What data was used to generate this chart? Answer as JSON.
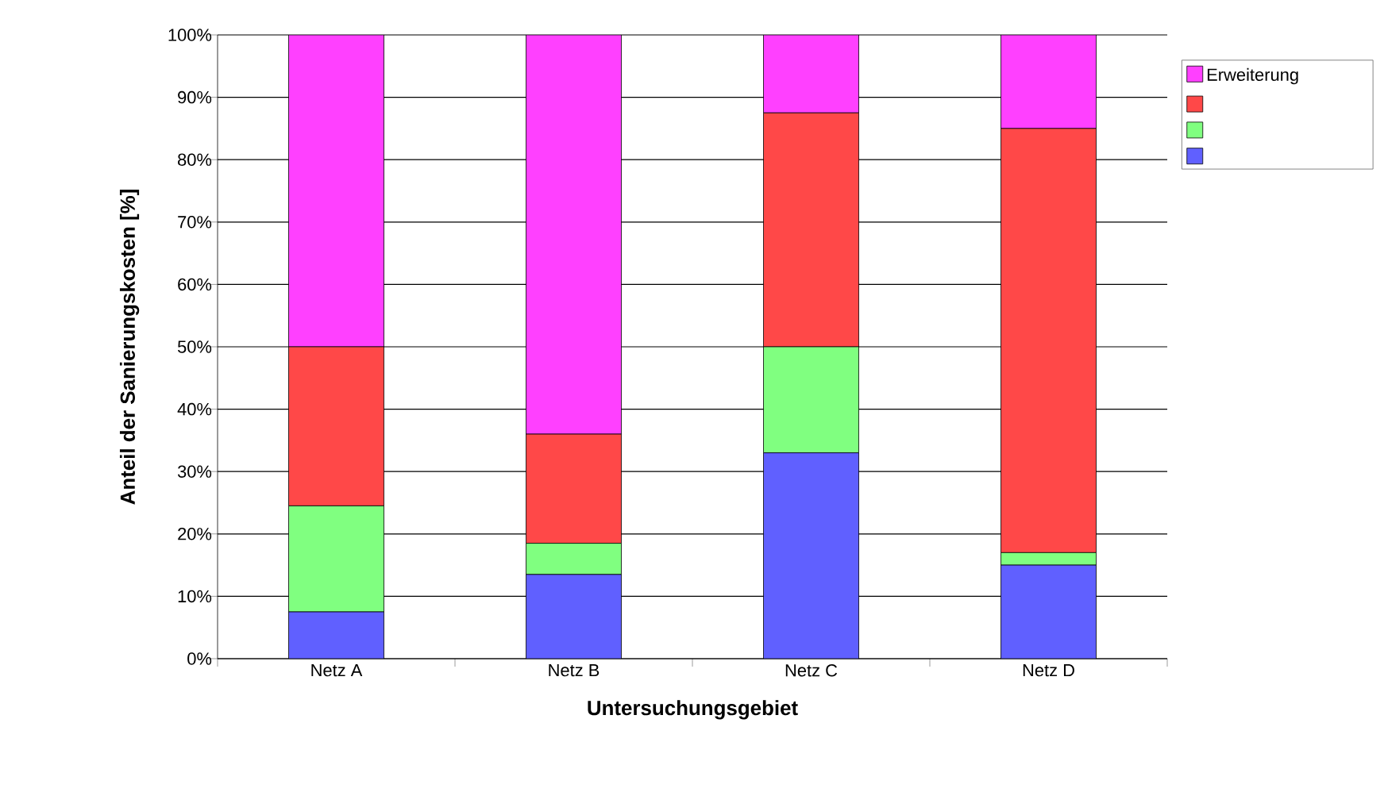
{
  "chart_data": {
    "type": "bar",
    "stacked": true,
    "categories": [
      "Netz A",
      "Netz B",
      "Netz C",
      "Netz D"
    ],
    "series": [
      {
        "color": "#6060ff",
        "values": [
          7.5,
          13.5,
          33,
          15
        ]
      },
      {
        "color": "#80ff80",
        "values": [
          17,
          5,
          17,
          2
        ]
      },
      {
        "color": "#ff4848",
        "values": [
          25.5,
          17.5,
          37.5,
          68
        ]
      },
      {
        "name": "Erweiterung",
        "color": "#ff40ff",
        "values": [
          50,
          64,
          12.5,
          15
        ]
      }
    ],
    "xlabel": "Untersuchungsgebiet",
    "ylabel": "Anteil der Sanierungskosten [%]",
    "ylim": [
      0,
      100
    ],
    "yticks": [
      {
        "value": 0,
        "label": "0%"
      },
      {
        "value": 10,
        "label": "10%"
      },
      {
        "value": 20,
        "label": "20%"
      },
      {
        "value": 30,
        "label": "30%"
      },
      {
        "value": 40,
        "label": "40%"
      },
      {
        "value": 50,
        "label": "50%"
      },
      {
        "value": 60,
        "label": "60%"
      },
      {
        "value": 70,
        "label": "70%"
      },
      {
        "value": 80,
        "label": "80%"
      },
      {
        "value": 90,
        "label": "90%"
      },
      {
        "value": 100,
        "label": "100%"
      }
    ],
    "grid": "y",
    "legend": "right"
  }
}
